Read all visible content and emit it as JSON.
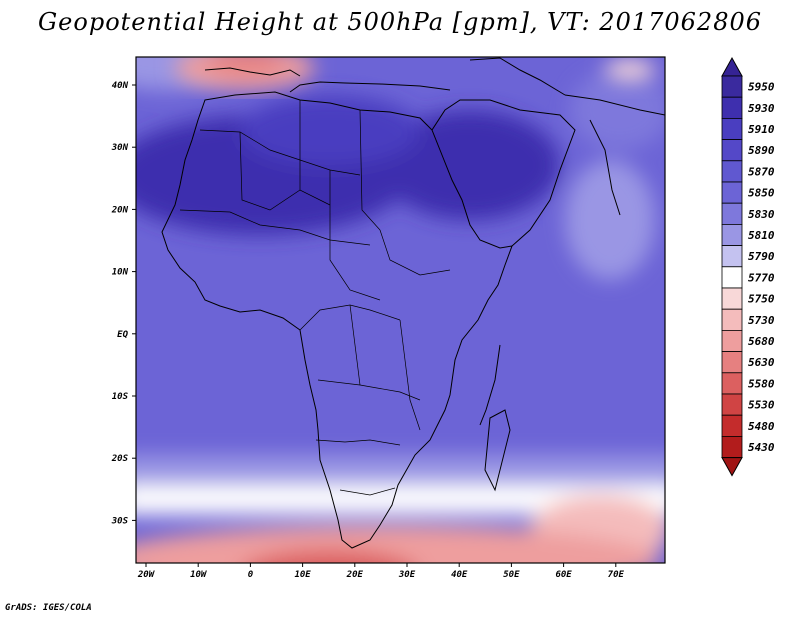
{
  "title": "Geopotential Height at 500hPa [gpm], VT: 2017062806",
  "credit": "GrADS: IGES/COLA",
  "map": {
    "lat_labels": [
      "40N",
      "30N",
      "20N",
      "10N",
      "EQ",
      "10S",
      "20S",
      "30S"
    ],
    "lon_labels": [
      "20W",
      "10W",
      "0",
      "10E",
      "20E",
      "30E",
      "40E",
      "50E",
      "60E",
      "70E"
    ]
  },
  "colorbar": {
    "levels": [
      "5950",
      "5930",
      "5910",
      "5890",
      "5870",
      "5850",
      "5830",
      "5810",
      "5790",
      "5770",
      "5750",
      "5730",
      "5680",
      "5630",
      "5580",
      "5530",
      "5480",
      "5430"
    ],
    "colors": [
      "#3a2a9e",
      "#3e2fae",
      "#4a3ec0",
      "#5448c8",
      "#6058d0",
      "#6c64d6",
      "#7e78dc",
      "#9a96e4",
      "#c4c2f0",
      "#ffffff",
      "#f8d8d8",
      "#f4bcbc",
      "#ee9e9e",
      "#e68080",
      "#dc6060",
      "#d04444",
      "#c42c2c",
      "#b21c1c"
    ],
    "top_arrow_color": "#352394",
    "bottom_arrow_color": "#a01414"
  }
}
